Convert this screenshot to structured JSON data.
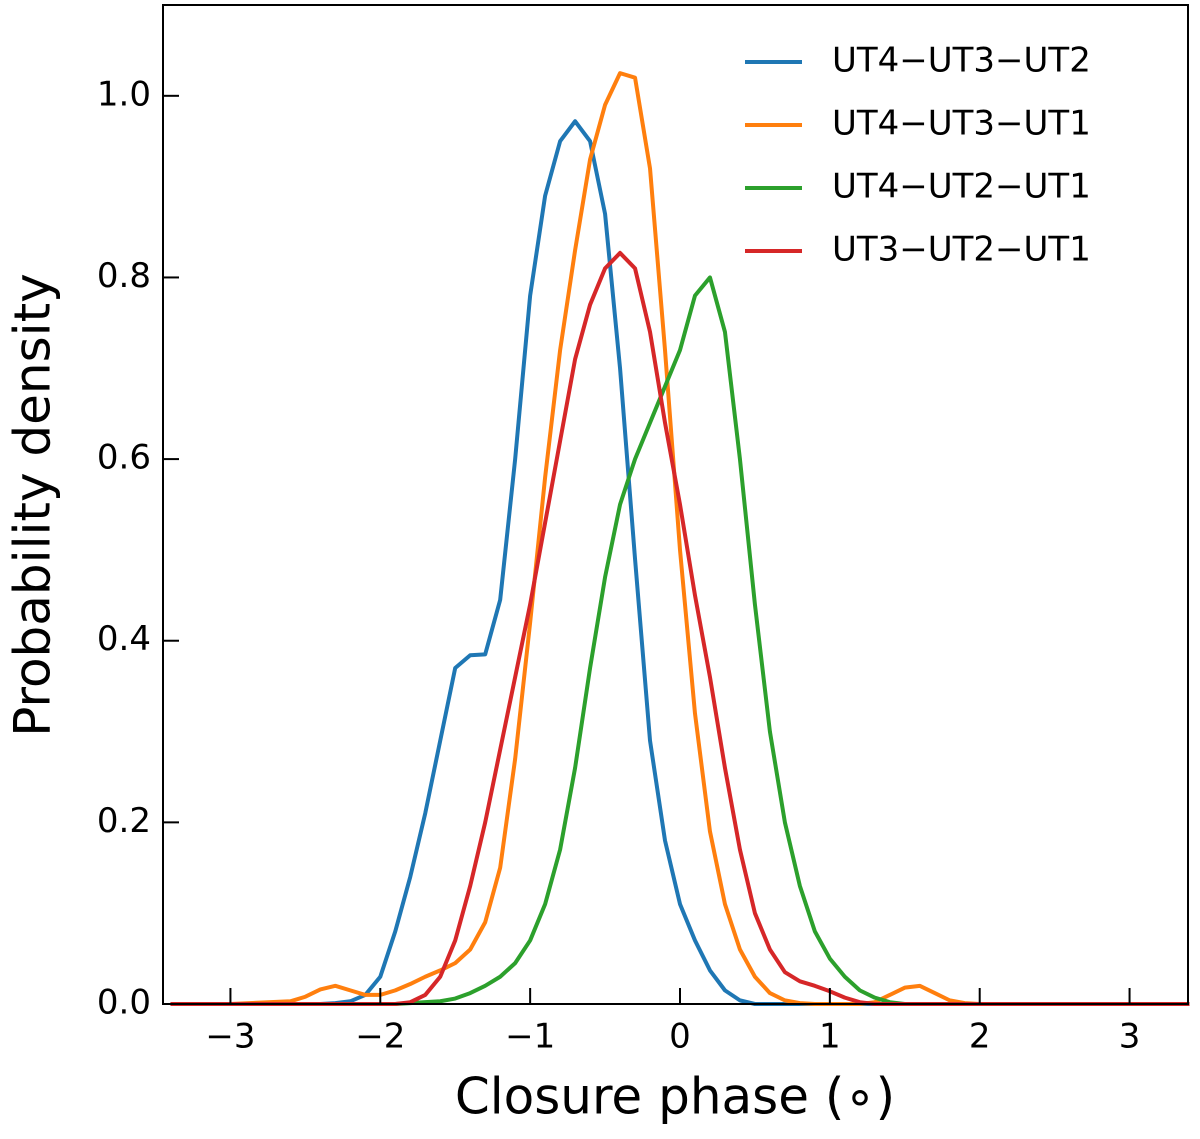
{
  "chart_data": {
    "type": "line",
    "xlabel": "Closure phase (∘)",
    "ylabel": "Probability density",
    "xlim": [
      -3.45,
      3.39
    ],
    "ylim": [
      0,
      1.1
    ],
    "xticks": [
      {
        "value": -3,
        "label": "−3"
      },
      {
        "value": -2,
        "label": "−2"
      },
      {
        "value": -1,
        "label": "−1"
      },
      0,
      1,
      2,
      3
    ],
    "yticks": [
      {
        "value": 0,
        "label": "0.0"
      },
      {
        "value": 0.2,
        "label": "0.2"
      },
      {
        "value": 0.4,
        "label": "0.4"
      },
      {
        "value": 0.6,
        "label": "0.6"
      },
      {
        "value": 0.8,
        "label": "0.8"
      },
      {
        "value": 1.0,
        "label": "1.0"
      }
    ],
    "legend": "upper right",
    "x": [
      -3.4,
      -3.0,
      -2.6,
      -2.5,
      -2.4,
      -2.3,
      -2.2,
      -2.1,
      -2.0,
      -1.9,
      -1.8,
      -1.7,
      -1.6,
      -1.5,
      -1.4,
      -1.3,
      -1.2,
      -1.1,
      -1.0,
      -0.9,
      -0.8,
      -0.7,
      -0.6,
      -0.5,
      -0.4,
      -0.3,
      -0.2,
      -0.1,
      0,
      0.1,
      0.2,
      0.3,
      0.4,
      0.5,
      0.6,
      0.7,
      0.8,
      0.9,
      1.0,
      1.1,
      1.2,
      1.3,
      1.4,
      1.5,
      1.6,
      1.7,
      1.8,
      1.9,
      2.0,
      2.4,
      3.4
    ],
    "series": [
      {
        "name": "UT4−UT3−UT2",
        "color": "#1f77b4",
        "values": [
          0,
          0,
          0,
          0,
          0,
          0.001,
          0.003,
          0.01,
          0.03,
          0.08,
          0.14,
          0.21,
          0.29,
          0.37,
          0.384,
          0.385,
          0.445,
          0.6,
          0.78,
          0.89,
          0.95,
          0.972,
          0.95,
          0.87,
          0.7,
          0.49,
          0.29,
          0.18,
          0.11,
          0.07,
          0.037,
          0.015,
          0.004,
          0,
          0,
          0,
          0,
          0,
          0,
          0,
          0,
          0,
          0,
          0,
          0,
          0,
          0,
          0,
          0,
          0,
          0
        ]
      },
      {
        "name": "UT4−UT3−UT1",
        "color": "#ff7f0e",
        "values": [
          0,
          0,
          0.003,
          0.008,
          0.016,
          0.02,
          0.015,
          0.01,
          0.01,
          0.015,
          0.022,
          0.03,
          0.037,
          0.045,
          0.06,
          0.09,
          0.15,
          0.27,
          0.42,
          0.58,
          0.72,
          0.83,
          0.93,
          0.99,
          1.025,
          1.02,
          0.92,
          0.72,
          0.5,
          0.32,
          0.19,
          0.11,
          0.06,
          0.03,
          0.012,
          0.004,
          0.001,
          0,
          0,
          0,
          0,
          0.002,
          0.01,
          0.018,
          0.02,
          0.012,
          0.004,
          0.001,
          0,
          0,
          0
        ]
      },
      {
        "name": "UT4−UT2−UT1",
        "color": "#2ca02c",
        "values": [
          0,
          0,
          0,
          0,
          0,
          0,
          0,
          0,
          0,
          0,
          0.001,
          0.002,
          0.003,
          0.006,
          0.012,
          0.02,
          0.03,
          0.045,
          0.07,
          0.11,
          0.17,
          0.26,
          0.37,
          0.47,
          0.55,
          0.6,
          0.64,
          0.68,
          0.72,
          0.78,
          0.8,
          0.74,
          0.6,
          0.44,
          0.3,
          0.2,
          0.13,
          0.08,
          0.05,
          0.03,
          0.015,
          0.007,
          0.002,
          0,
          0,
          0,
          0,
          0,
          0,
          0,
          0
        ]
      },
      {
        "name": "UT3−UT2−UT1",
        "color": "#d62728",
        "values": [
          0,
          0,
          0,
          0,
          0,
          0,
          0,
          0,
          0,
          0,
          0.002,
          0.01,
          0.03,
          0.07,
          0.13,
          0.2,
          0.28,
          0.36,
          0.44,
          0.53,
          0.62,
          0.71,
          0.77,
          0.81,
          0.827,
          0.81,
          0.74,
          0.64,
          0.55,
          0.45,
          0.36,
          0.26,
          0.17,
          0.1,
          0.06,
          0.035,
          0.025,
          0.02,
          0.014,
          0.007,
          0.002,
          0,
          0,
          0,
          0,
          0,
          0,
          0,
          0,
          0,
          0
        ]
      }
    ]
  }
}
